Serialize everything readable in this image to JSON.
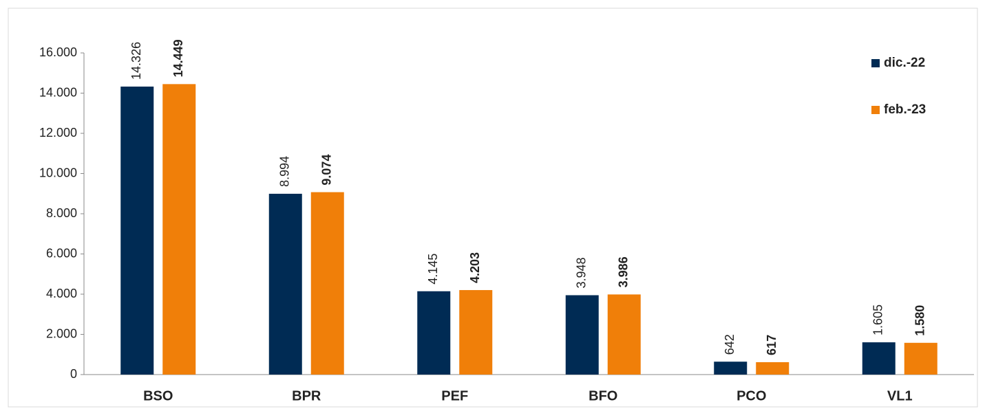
{
  "chart_data": {
    "type": "bar",
    "categories": [
      "BSO",
      "BPR",
      "PEF",
      "BFO",
      "PCO",
      "VL1"
    ],
    "series": [
      {
        "name": "dic.-22",
        "color": "#002b54",
        "values": [
          14326,
          8994,
          4145,
          3948,
          642,
          1605
        ],
        "value_labels": [
          "14.326",
          "8.994",
          "4.145",
          "3.948",
          "642",
          "1.605"
        ]
      },
      {
        "name": "feb.-23",
        "color": "#f07f09",
        "values": [
          14449,
          9074,
          4203,
          3986,
          617,
          1580
        ],
        "value_labels": [
          "14.449",
          "9.074",
          "4.203",
          "3.986",
          "617",
          "1.580"
        ]
      }
    ],
    "ylim": [
      0,
      16000
    ],
    "yticks": [
      0,
      {
        "value": 2000,
        "label": "2.000"
      },
      {
        "value": 4000,
        "label": "4.000"
      },
      {
        "value": 6000,
        "label": "6.000"
      },
      {
        "value": 8000,
        "label": "8.000"
      },
      {
        "value": 10000,
        "label": "10.000"
      },
      {
        "value": 12000,
        "label": "12.000"
      },
      {
        "value": 14000,
        "label": "14.000"
      },
      {
        "value": 16000,
        "label": "16.000"
      }
    ],
    "grid": false,
    "legend": "top-right"
  }
}
